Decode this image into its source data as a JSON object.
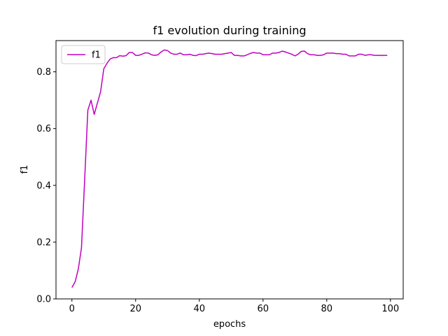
{
  "chart_data": {
    "type": "line",
    "title": "f1 evolution during training",
    "xlabel": "epochs",
    "ylabel": "f1",
    "xlim": [
      -5,
      104
    ],
    "ylim": [
      0.0,
      0.91
    ],
    "xticks": [
      0,
      20,
      40,
      60,
      80,
      100
    ],
    "yticks": [
      0.0,
      0.2,
      0.4,
      0.6,
      0.8
    ],
    "xtick_labels": [
      "0",
      "20",
      "40",
      "60",
      "80",
      "100"
    ],
    "ytick_labels": [
      "0.0",
      "0.2",
      "0.4",
      "0.6",
      "0.8"
    ],
    "grid": false,
    "legend": {
      "position": "top-left",
      "entries": [
        "f1"
      ]
    },
    "series": [
      {
        "name": "f1",
        "color": "#bf00bf",
        "x": [
          0,
          1,
          2,
          3,
          4,
          5,
          6,
          7,
          8,
          9,
          10,
          11,
          12,
          13,
          14,
          15,
          16,
          17,
          18,
          19,
          20,
          21,
          22,
          23,
          24,
          25,
          26,
          27,
          28,
          29,
          30,
          31,
          32,
          33,
          34,
          35,
          36,
          37,
          38,
          39,
          40,
          41,
          42,
          43,
          44,
          45,
          46,
          47,
          48,
          49,
          50,
          51,
          52,
          53,
          54,
          55,
          56,
          57,
          58,
          59,
          60,
          61,
          62,
          63,
          64,
          65,
          66,
          67,
          68,
          69,
          70,
          71,
          72,
          73,
          74,
          75,
          76,
          77,
          78,
          79,
          80,
          81,
          82,
          83,
          84,
          85,
          86,
          87,
          88,
          89,
          90,
          91,
          92,
          93,
          94,
          95,
          96,
          97,
          98,
          99
        ],
        "values": [
          0.04,
          0.06,
          0.105,
          0.18,
          0.42,
          0.665,
          0.7,
          0.65,
          0.69,
          0.73,
          0.81,
          0.83,
          0.845,
          0.85,
          0.85,
          0.857,
          0.855,
          0.857,
          0.868,
          0.868,
          0.858,
          0.858,
          0.862,
          0.867,
          0.866,
          0.86,
          0.858,
          0.86,
          0.87,
          0.877,
          0.875,
          0.866,
          0.862,
          0.862,
          0.866,
          0.86,
          0.86,
          0.862,
          0.858,
          0.857,
          0.862,
          0.862,
          0.864,
          0.866,
          0.864,
          0.862,
          0.862,
          0.862,
          0.864,
          0.866,
          0.868,
          0.858,
          0.858,
          0.856,
          0.856,
          0.86,
          0.865,
          0.868,
          0.866,
          0.866,
          0.86,
          0.86,
          0.86,
          0.866,
          0.866,
          0.868,
          0.873,
          0.87,
          0.866,
          0.862,
          0.856,
          0.862,
          0.872,
          0.873,
          0.864,
          0.86,
          0.86,
          0.858,
          0.858,
          0.86,
          0.866,
          0.866,
          0.866,
          0.864,
          0.864,
          0.862,
          0.862,
          0.856,
          0.856,
          0.856,
          0.862,
          0.862,
          0.858,
          0.86,
          0.86,
          0.858,
          0.858,
          0.858,
          0.858,
          0.858
        ]
      }
    ]
  }
}
